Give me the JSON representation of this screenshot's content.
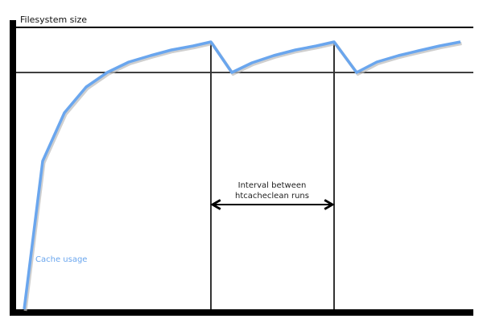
{
  "diagram": {
    "y_axis_label": "Filesystem size",
    "curve_label": "Cache usage",
    "interval_label_line1": "Interval between",
    "interval_label_line2": "htcacheclean runs",
    "colors": {
      "curve": "#6aa6ee",
      "curve_shadow": "#b8b8b8",
      "axes": "#000000"
    }
  }
}
